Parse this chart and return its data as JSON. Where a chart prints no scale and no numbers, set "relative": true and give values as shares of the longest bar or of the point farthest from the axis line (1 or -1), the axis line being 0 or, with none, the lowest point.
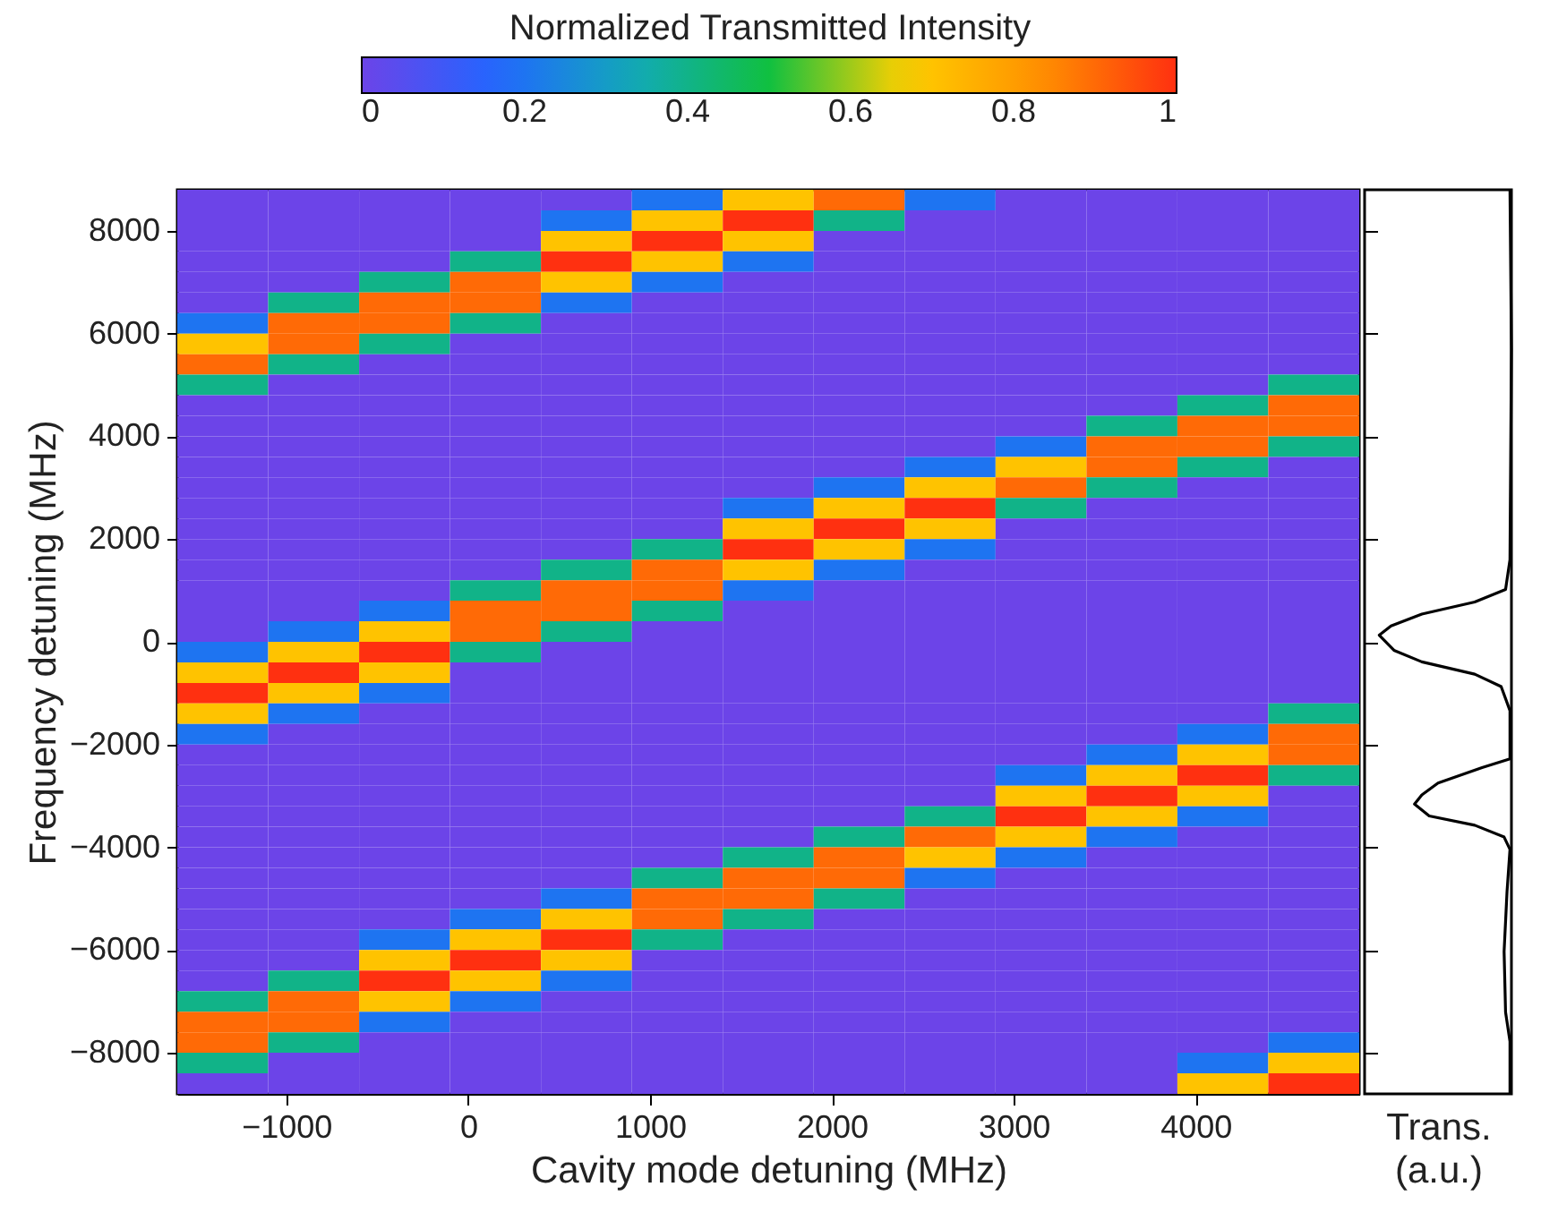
{
  "chart_data": [
    {
      "type": "heatmap",
      "xlabel": "Cavity mode detuning (MHz)",
      "ylabel": "Frequency detuning (MHz)",
      "clabel": "Normalized Transmitted Intensity",
      "cells": [
        [
          0,
          0,
          0,
          0,
          0,
          0.2,
          0.7,
          0.9,
          0.2,
          0,
          0,
          0,
          0
        ],
        [
          0,
          0,
          0,
          0,
          0.2,
          0.7,
          1,
          0.4,
          0,
          0,
          0,
          0,
          0
        ],
        [
          0,
          0,
          0,
          0,
          0.7,
          1,
          0.7,
          0,
          0,
          0,
          0,
          0,
          0
        ],
        [
          0,
          0,
          0,
          0.4,
          1,
          0.7,
          0.2,
          0,
          0,
          0,
          0,
          0,
          0
        ],
        [
          0,
          0,
          0.4,
          0.9,
          0.7,
          0.2,
          0,
          0,
          0,
          0,
          0,
          0,
          0
        ],
        [
          0,
          0.4,
          0.9,
          0.9,
          0.2,
          0,
          0,
          0,
          0,
          0,
          0,
          0,
          0
        ],
        [
          0.2,
          0.9,
          0.9,
          0.4,
          0,
          0,
          0,
          0,
          0,
          0,
          0,
          0,
          0
        ],
        [
          0.7,
          0.9,
          0.4,
          0,
          0,
          0,
          0,
          0,
          0,
          0,
          0,
          0,
          0
        ],
        [
          0.9,
          0.4,
          0,
          0,
          0,
          0,
          0,
          0,
          0,
          0,
          0,
          0,
          0
        ],
        [
          0.4,
          0,
          0,
          0,
          0,
          0,
          0,
          0,
          0,
          0,
          0,
          0,
          0.4
        ],
        [
          0,
          0,
          0,
          0,
          0,
          0,
          0,
          0,
          0,
          0,
          0,
          0.4,
          0.9
        ],
        [
          0,
          0,
          0,
          0,
          0,
          0,
          0,
          0,
          0,
          0,
          0.4,
          0.9,
          0.9
        ],
        [
          0,
          0,
          0,
          0,
          0,
          0,
          0,
          0,
          0,
          0.2,
          0.9,
          0.9,
          0.4
        ],
        [
          0,
          0,
          0,
          0,
          0,
          0,
          0,
          0,
          0.2,
          0.7,
          0.9,
          0.4,
          0
        ],
        [
          0,
          0,
          0,
          0,
          0,
          0,
          0,
          0.2,
          0.7,
          0.9,
          0.4,
          0,
          0
        ],
        [
          0,
          0,
          0,
          0,
          0,
          0,
          0.2,
          0.7,
          1,
          0.4,
          0,
          0,
          0
        ],
        [
          0,
          0,
          0,
          0,
          0,
          0,
          0.7,
          1,
          0.7,
          0,
          0,
          0,
          0
        ],
        [
          0,
          0,
          0,
          0,
          0,
          0.4,
          1,
          0.7,
          0.2,
          0,
          0,
          0,
          0
        ],
        [
          0,
          0,
          0,
          0,
          0.4,
          0.9,
          0.7,
          0.2,
          0,
          0,
          0,
          0,
          0
        ],
        [
          0,
          0,
          0,
          0.4,
          0.9,
          0.9,
          0.2,
          0,
          0,
          0,
          0,
          0,
          0
        ],
        [
          0,
          0,
          0.2,
          0.9,
          0.9,
          0.4,
          0,
          0,
          0,
          0,
          0,
          0,
          0
        ],
        [
          0,
          0.2,
          0.7,
          0.9,
          0.4,
          0,
          0,
          0,
          0,
          0,
          0,
          0,
          0
        ],
        [
          0.2,
          0.7,
          1,
          0.4,
          0,
          0,
          0,
          0,
          0,
          0,
          0,
          0,
          0
        ],
        [
          0.7,
          1,
          0.7,
          0,
          0,
          0,
          0,
          0,
          0,
          0,
          0,
          0,
          0
        ],
        [
          1,
          0.7,
          0.2,
          0,
          0,
          0,
          0,
          0,
          0,
          0,
          0,
          0,
          0
        ],
        [
          0.7,
          0.2,
          0,
          0,
          0,
          0,
          0,
          0,
          0,
          0,
          0,
          0,
          0.4
        ],
        [
          0.2,
          0,
          0,
          0,
          0,
          0,
          0,
          0,
          0,
          0,
          0,
          0.2,
          0.9
        ],
        [
          0,
          0,
          0,
          0,
          0,
          0,
          0,
          0,
          0,
          0,
          0.2,
          0.7,
          0.9
        ],
        [
          0,
          0,
          0,
          0,
          0,
          0,
          0,
          0,
          0,
          0.2,
          0.7,
          1,
          0.4
        ],
        [
          0,
          0,
          0,
          0,
          0,
          0,
          0,
          0,
          0,
          0.7,
          1,
          0.7,
          0
        ],
        [
          0,
          0,
          0,
          0,
          0,
          0,
          0,
          0,
          0.4,
          1,
          0.7,
          0.2,
          0
        ],
        [
          0,
          0,
          0,
          0,
          0,
          0,
          0,
          0.4,
          0.9,
          0.7,
          0.2,
          0,
          0
        ],
        [
          0,
          0,
          0,
          0,
          0,
          0,
          0.4,
          0.9,
          0.7,
          0.2,
          0,
          0,
          0
        ],
        [
          0,
          0,
          0,
          0,
          0,
          0.4,
          0.9,
          0.9,
          0.2,
          0,
          0,
          0,
          0
        ],
        [
          0,
          0,
          0,
          0,
          0.2,
          0.9,
          0.9,
          0.4,
          0,
          0,
          0,
          0,
          0
        ],
        [
          0,
          0,
          0,
          0.2,
          0.7,
          0.9,
          0.4,
          0,
          0,
          0,
          0,
          0,
          0
        ],
        [
          0,
          0,
          0.2,
          0.7,
          1,
          0.4,
          0,
          0,
          0,
          0,
          0,
          0,
          0
        ],
        [
          0,
          0,
          0.7,
          1,
          0.7,
          0,
          0,
          0,
          0,
          0,
          0,
          0,
          0
        ],
        [
          0,
          0.4,
          1,
          0.7,
          0.2,
          0,
          0,
          0,
          0,
          0,
          0,
          0,
          0
        ],
        [
          0.4,
          0.9,
          0.7,
          0.2,
          0,
          0,
          0,
          0,
          0,
          0,
          0,
          0,
          0
        ],
        [
          0.9,
          0.9,
          0.2,
          0,
          0,
          0,
          0,
          0,
          0,
          0,
          0,
          0,
          0
        ],
        [
          0.9,
          0.4,
          0,
          0,
          0,
          0,
          0,
          0,
          0,
          0,
          0,
          0,
          0.2
        ],
        [
          0.4,
          0,
          0,
          0,
          0,
          0,
          0,
          0,
          0,
          0,
          0,
          0.2,
          0.7
        ],
        [
          0,
          0,
          0,
          0,
          0,
          0,
          0,
          0,
          0,
          0,
          0,
          0.7,
          1
        ]
      ],
      "colors": [
        "#6c44e8",
        "#2166ff",
        "#12aab8",
        "#10c040",
        "#ffd000",
        "#ff9000",
        "#ff3010"
      ],
      "clim": [
        0,
        1
      ],
      "cticks": [
        0,
        0.2,
        0.4,
        0.6,
        0.8,
        1
      ],
      "xlim": [
        -1600,
        4900
      ],
      "xticks": [
        -1000,
        0,
        1000,
        2000,
        3000,
        4000
      ],
      "ylim": [
        -8800,
        8800
      ],
      "yticks": [
        -8000,
        -6000,
        -4000,
        -2000,
        0,
        2000,
        4000,
        6000,
        8000
      ]
    },
    {
      "type": "line",
      "orientation": "horizontal",
      "relative": true,
      "xlabel": "Trans. (a.u.)",
      "tick_labels": false,
      "x": [
        8800,
        5700,
        1600,
        1020,
        775,
        540,
        310,
        130,
        -165,
        -390,
        -630,
        -870,
        -1340,
        -2280,
        -2450,
        -2750,
        -2980,
        -3160,
        -3390,
        -3570,
        -3800,
        -4040,
        -4860,
        -6030,
        -7210,
        -7780,
        -8800
      ],
      "series": [
        {
          "color": "#000000",
          "values": [
            0.99,
            1,
            0.99,
            0.96,
            0.75,
            0.39,
            0.18,
            0.1,
            0.2,
            0.39,
            0.75,
            0.93,
            0.99,
            0.99,
            0.8,
            0.5,
            0.39,
            0.34,
            0.44,
            0.75,
            0.95,
            0.99,
            0.97,
            0.95,
            0.96,
            0.99,
            0.99
          ]
        }
      ],
      "ylim": [
        -8800,
        8800
      ],
      "yticks": [
        -8000,
        -6000,
        -4000,
        -2000,
        0,
        2000,
        4000,
        6000,
        8000
      ]
    }
  ]
}
